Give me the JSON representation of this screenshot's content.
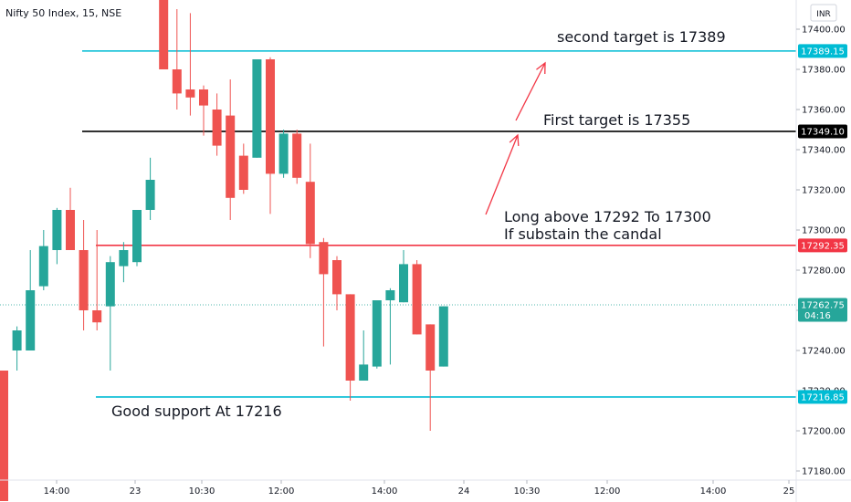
{
  "header": {
    "title": "Nifty 50 Index, 15, NSE",
    "currency": "INR"
  },
  "chart_data": {
    "type": "candlestick",
    "y_ticks": [
      17180,
      17200,
      17220,
      17240,
      17260,
      17280,
      17300,
      17320,
      17340,
      17360,
      17380,
      17400
    ],
    "y_tick_labels": [
      "17180.00",
      "17200.00",
      "17220.00",
      "17240.00",
      "17260.00",
      "17280.00",
      "17300.00",
      "17320.00",
      "17340.00",
      "17360.00",
      "17380.00",
      "17400.00"
    ],
    "ylim": [
      17171,
      17423
    ],
    "x_ticks": [
      "14:00",
      "23",
      "10:30",
      "12:00",
      "14:00",
      "24",
      "10:30",
      "12:00",
      "14:00",
      "25"
    ],
    "candles": [
      {
        "o": 17230,
        "h": 17230,
        "l": 17165,
        "c": 17165
      },
      {
        "o": 17240,
        "h": 17252,
        "l": 17230,
        "c": 17250
      },
      {
        "o": 17240,
        "h": 17290,
        "l": 17240,
        "c": 17270
      },
      {
        "o": 17272,
        "h": 17300,
        "l": 17270,
        "c": 17292
      },
      {
        "o": 17290,
        "h": 17311,
        "l": 17283,
        "c": 17310
      },
      {
        "o": 17310,
        "h": 17321,
        "l": 17290,
        "c": 17290
      },
      {
        "o": 17290,
        "h": 17305,
        "l": 17250,
        "c": 17260
      },
      {
        "o": 17260,
        "h": 17300,
        "l": 17250,
        "c": 17254
      },
      {
        "o": 17262,
        "h": 17287,
        "l": 17230,
        "c": 17284
      },
      {
        "o": 17282,
        "h": 17294,
        "l": 17274,
        "c": 17290
      },
      {
        "o": 17284,
        "h": 17310,
        "l": 17282,
        "c": 17310
      },
      {
        "o": 17310,
        "h": 17336,
        "l": 17305,
        "c": 17325
      },
      {
        "o": 17425,
        "h": 17425,
        "l": 17380,
        "c": 17380
      },
      {
        "o": 17380,
        "h": 17410,
        "l": 17360,
        "c": 17368
      },
      {
        "o": 17370,
        "h": 17408,
        "l": 17357,
        "c": 17366
      },
      {
        "o": 17370,
        "h": 17372,
        "l": 17347,
        "c": 17362
      },
      {
        "o": 17360,
        "h": 17368,
        "l": 17337,
        "c": 17342
      },
      {
        "o": 17357,
        "h": 17375,
        "l": 17305,
        "c": 17316
      },
      {
        "o": 17337,
        "h": 17343,
        "l": 17318,
        "c": 17320
      },
      {
        "o": 17336,
        "h": 17385,
        "l": 17336,
        "c": 17385
      },
      {
        "o": 17385,
        "h": 17386,
        "l": 17308,
        "c": 17328
      },
      {
        "o": 17328,
        "h": 17350,
        "l": 17326,
        "c": 17348
      },
      {
        "o": 17348,
        "h": 17350,
        "l": 17323,
        "c": 17326
      },
      {
        "o": 17324,
        "h": 17343,
        "l": 17286,
        "c": 17293
      },
      {
        "o": 17294,
        "h": 17296,
        "l": 17242,
        "c": 17278
      },
      {
        "o": 17285,
        "h": 17287,
        "l": 17260,
        "c": 17268
      },
      {
        "o": 17268,
        "h": 17268,
        "l": 17215,
        "c": 17225
      },
      {
        "o": 17225,
        "h": 17250,
        "l": 17225,
        "c": 17233
      },
      {
        "o": 17232,
        "h": 17265,
        "l": 17231,
        "c": 17265
      },
      {
        "o": 17265,
        "h": 17271,
        "l": 17233,
        "c": 17270
      },
      {
        "o": 17264,
        "h": 17290,
        "l": 17264,
        "c": 17283
      },
      {
        "o": 17283,
        "h": 17285,
        "l": 17248,
        "c": 17248
      },
      {
        "o": 17253,
        "h": 17253,
        "l": 17200,
        "c": 17230
      },
      {
        "o": 17232,
        "h": 17262,
        "l": 17232,
        "c": 17262
      }
    ],
    "hlines": [
      {
        "value": 17389.15,
        "label": "17389.15",
        "color": "#00bcd4"
      },
      {
        "value": 17349.1,
        "label": "17349.10",
        "color": "#000000"
      },
      {
        "value": 17292.35,
        "label": "17292.35",
        "color": "#f23645"
      },
      {
        "value": 17216.85,
        "label": "17216.85",
        "color": "#00bcd4"
      }
    ],
    "last_price": {
      "value": 17262.75,
      "label": "17262.75",
      "countdown": "04:16",
      "color": "#26a69a"
    },
    "annotations": [
      {
        "text": "second target is 17389"
      },
      {
        "text": "First target is 17355"
      },
      {
        "text": "Long above 17292 To 17300"
      },
      {
        "text": "If substain the candal"
      },
      {
        "text": "Good support At 17216"
      }
    ],
    "colors": {
      "up": "#26a69a",
      "down": "#ef5350",
      "arrow": "#f23645"
    }
  }
}
